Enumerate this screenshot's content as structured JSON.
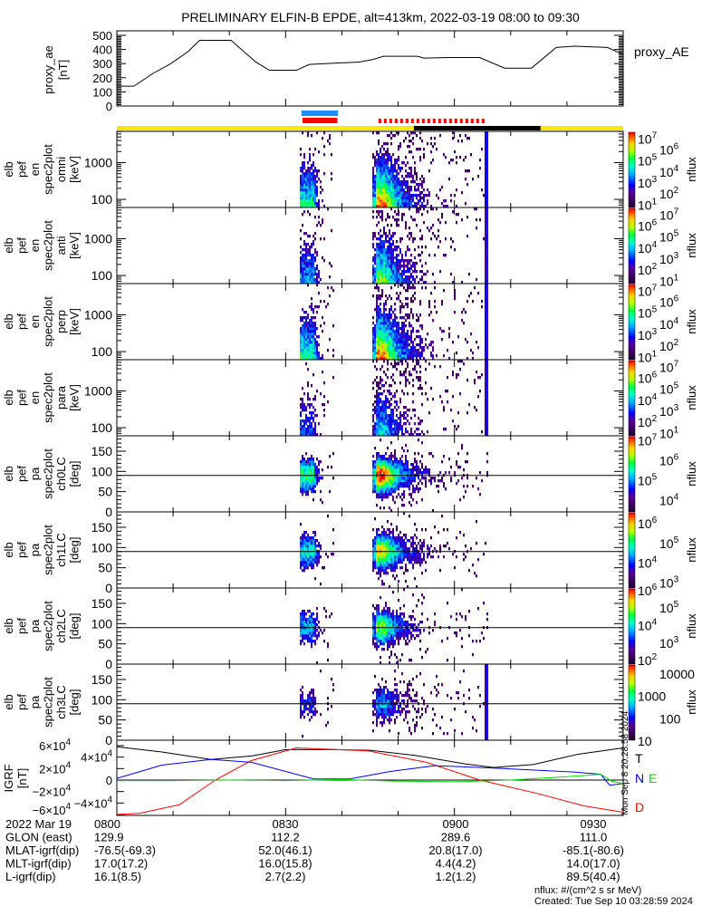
{
  "title": "PRELIMINARY ELFIN-B EPDE, alt=413km, 2022-03-19 08:00 to 09:30",
  "chart_data": [
    {
      "type": "line",
      "name": "proxy_ae",
      "ylabel": [
        "proxy_ae",
        "[nT]"
      ],
      "legend": "proxy_AE",
      "xunit": "minutes after 08:00",
      "xlim": [
        0,
        90
      ],
      "ylim": [
        0,
        500
      ],
      "yticks": [
        "0",
        "100",
        "200",
        "300",
        "400",
        "500"
      ],
      "ytick_values": [
        0,
        100,
        200,
        300,
        400,
        500
      ],
      "x": [
        0,
        3,
        6.4,
        9.6,
        12.7,
        14.7,
        20.3,
        24.7,
        27.1,
        31.9,
        34.2,
        39.8,
        43.0,
        45.4,
        47.4,
        53.4,
        54.6,
        58.9,
        64.5,
        68.9,
        73.7,
        78.1,
        81.3,
        87.2,
        90
      ],
      "values": [
        140,
        140,
        230,
        300,
        386,
        465,
        465,
        311,
        253,
        253,
        294,
        305,
        311,
        328,
        352,
        352,
        339,
        343,
        343,
        268,
        268,
        414,
        423,
        414,
        365
      ]
    },
    {
      "type": "interval_bars",
      "name": "zone_indicators",
      "xunit": "minutes after 08:00",
      "bars": [
        {
          "name": "blue-bar",
          "color": "#1e8cff",
          "start": 32.8,
          "end": 39.3,
          "style": "solid"
        },
        {
          "name": "red-bar",
          "color": "#ff0000",
          "start": 33.0,
          "end": 39.2,
          "style": "solid"
        },
        {
          "name": "red-dashed-bar",
          "color": "#ff0000",
          "start": 46.5,
          "end": 65.8,
          "style": "dashed"
        }
      ],
      "sun_bar": {
        "sunlit_color": "#ffe600",
        "shadow_color": "#000000",
        "shadow": [
          52.8,
          75.3
        ]
      }
    },
    {
      "type": "heatmap",
      "name": "spectrograms",
      "zlabel": "nflux",
      "active_intervals": [
        [
          32.3,
          38.6
        ],
        [
          45.3,
          65.8
        ]
      ],
      "panels": [
        {
          "ylabel": [
            "elb",
            "pef",
            "en",
            "spec2plot",
            "omni",
            "[keV]"
          ],
          "kind": "energy",
          "yticks": [
            "1000",
            "100"
          ],
          "ytick_values": [
            1000,
            100
          ],
          "ylog_range": [
            1.78,
            3.85
          ],
          "strength": 1.0,
          "colorbar": {
            "log_range": [
              0.7,
              7.6
            ],
            "labels": [
              [
                "10",
                "7"
              ],
              [
                "10",
                "6"
              ],
              [
                "10",
                "5"
              ],
              [
                "10",
                "4"
              ],
              [
                "10",
                "3"
              ],
              [
                "10",
                "2"
              ],
              [
                "10",
                "1"
              ]
            ],
            "label_exps": [
              7,
              6,
              5,
              4,
              3,
              2,
              1
            ]
          }
        },
        {
          "ylabel": [
            "elb",
            "pef",
            "en",
            "spec2plot",
            "anti",
            "[keV]"
          ],
          "kind": "energy",
          "yticks": [
            "1000",
            "100"
          ],
          "ytick_values": [
            1000,
            100
          ],
          "ylog_range": [
            1.78,
            3.85
          ],
          "strength": 0.75,
          "colorbar": {
            "log_range": [
              0.7,
              7.6
            ],
            "labels": [
              [
                "10",
                "7"
              ],
              [
                "10",
                "6"
              ],
              [
                "10",
                "5"
              ],
              [
                "10",
                "4"
              ],
              [
                "10",
                "3"
              ],
              [
                "10",
                "2"
              ],
              [
                "10",
                "1"
              ]
            ],
            "label_exps": [
              7,
              6,
              5,
              4,
              3,
              2,
              1
            ]
          }
        },
        {
          "ylabel": [
            "elb",
            "pef",
            "en",
            "spec2plot",
            "perp",
            "[keV]"
          ],
          "kind": "energy",
          "yticks": [
            "1000",
            "100"
          ],
          "ytick_values": [
            1000,
            100
          ],
          "ylog_range": [
            1.78,
            3.85
          ],
          "strength": 1.0,
          "colorbar": {
            "log_range": [
              0.7,
              7.6
            ],
            "labels": [
              [
                "10",
                "7"
              ],
              [
                "10",
                "6"
              ],
              [
                "10",
                "5"
              ],
              [
                "10",
                "4"
              ],
              [
                "10",
                "3"
              ],
              [
                "10",
                "2"
              ],
              [
                "10",
                "1"
              ]
            ],
            "label_exps": [
              7,
              6,
              5,
              4,
              3,
              2,
              1
            ]
          }
        },
        {
          "ylabel": [
            "elb",
            "pef",
            "en",
            "spec2plot",
            "para",
            "[keV]"
          ],
          "kind": "energy",
          "yticks": [
            "1000",
            "100"
          ],
          "ytick_values": [
            1000,
            100
          ],
          "ylog_range": [
            1.78,
            3.85
          ],
          "strength": 0.55,
          "colorbar": {
            "log_range": [
              0.7,
              7.6
            ],
            "labels": [
              [
                "10",
                "7"
              ],
              [
                "10",
                "6"
              ],
              [
                "10",
                "5"
              ],
              [
                "10",
                "4"
              ],
              [
                "10",
                "3"
              ],
              [
                "10",
                "2"
              ],
              [
                "10",
                "1"
              ]
            ],
            "label_exps": [
              7,
              6,
              5,
              4,
              3,
              2,
              1
            ]
          }
        },
        {
          "ylabel": [
            "elb",
            "pef",
            "pa",
            "spec2plot",
            "ch0LC",
            "[deg]"
          ],
          "kind": "pa",
          "yticks": [
            "150",
            "100",
            "50",
            "0"
          ],
          "ytick_values": [
            150,
            100,
            50,
            0
          ],
          "yrange": [
            0,
            188
          ],
          "strength": 1.0,
          "colorbar": {
            "log_range": [
              3.4,
              7.2
            ],
            "labels": [
              [
                "10",
                "7"
              ],
              [
                "10",
                "6"
              ],
              [
                "10",
                "5"
              ],
              [
                "10",
                "4"
              ]
            ],
            "label_exps": [
              7,
              6,
              5,
              4
            ]
          }
        },
        {
          "ylabel": [
            "elb",
            "pef",
            "pa",
            "spec2plot",
            "ch1LC",
            "[deg]"
          ],
          "kind": "pa",
          "yticks": [
            "150",
            "100",
            "50",
            "0"
          ],
          "ytick_values": [
            150,
            100,
            50,
            0
          ],
          "yrange": [
            0,
            188
          ],
          "strength": 0.85,
          "colorbar": {
            "log_range": [
              2.7,
              6.55
            ],
            "labels": [
              [
                "10",
                "6"
              ],
              [
                "10",
                "5"
              ],
              [
                "10",
                "4"
              ],
              [
                "10",
                "3"
              ]
            ],
            "label_exps": [
              6,
              5,
              4,
              3
            ]
          }
        },
        {
          "ylabel": [
            "elb",
            "pef",
            "pa",
            "spec2plot",
            "ch2LC",
            "[deg]"
          ],
          "kind": "pa",
          "yticks": [
            "150",
            "100",
            "50",
            "0"
          ],
          "ytick_values": [
            150,
            100,
            50,
            0
          ],
          "yrange": [
            0,
            188
          ],
          "strength": 0.7,
          "colorbar": {
            "log_range": [
              1.75,
              6.1
            ],
            "labels": [
              [
                "10",
                "6"
              ],
              [
                "10",
                "5"
              ],
              [
                "10",
                "4"
              ],
              [
                "10",
                "3"
              ],
              [
                "10",
                "2"
              ]
            ],
            "label_exps": [
              6,
              5,
              4,
              3,
              2
            ]
          }
        },
        {
          "ylabel": [
            "elb",
            "pef",
            "pa",
            "spec2plot",
            "ch3LC",
            "[deg]"
          ],
          "kind": "pa",
          "yticks": [
            "150",
            "100",
            "50",
            "0"
          ],
          "ytick_values": [
            150,
            100,
            50,
            0
          ],
          "yrange": [
            0,
            188
          ],
          "strength": 0.45,
          "colorbar": {
            "log_range": [
              1.0,
              4.4
            ],
            "labels": [
              [
                "10000",
                ""
              ],
              [
                "1000",
                ""
              ],
              [
                "100",
                ""
              ],
              [
                "10",
                ""
              ]
            ],
            "label_exps": [
              4,
              3,
              2,
              1
            ]
          }
        }
      ]
    },
    {
      "type": "line",
      "name": "igrf",
      "ylabel": [
        "IGRF",
        "[nT]"
      ],
      "xunit": "minutes after 08:00",
      "ylim": [
        -60000,
        60000
      ],
      "yticks": [
        [
          "6×10",
          "4"
        ],
        [
          "4×10",
          "4"
        ],
        [
          "2×10",
          "4"
        ],
        [
          "0",
          ""
        ],
        [
          "−2×10",
          "4"
        ],
        [
          "−4×10",
          "4"
        ],
        [
          "−6×10",
          "4"
        ]
      ],
      "ytick_values": [
        60000,
        40000,
        20000,
        0,
        -20000,
        -40000,
        -60000
      ],
      "series": [
        {
          "name": "T",
          "color": "#000000",
          "x": [
            0,
            8,
            16.7,
            24,
            30,
            38,
            45,
            53,
            62,
            67,
            74,
            82,
            90
          ],
          "values": [
            58000,
            49000,
            36000,
            42000,
            53000,
            53000,
            52000,
            43000,
            28000,
            22000,
            27000,
            45000,
            56000
          ]
        },
        {
          "name": "D",
          "color": "#ff0000",
          "x": [
            0,
            4,
            11.1,
            17.5,
            23.9,
            31.9,
            44.6,
            55,
            64.5,
            75,
            83,
            90
          ],
          "values": [
            -60000,
            -58000,
            -43000,
            0,
            34000,
            56000,
            51000,
            31000,
            0,
            -24000,
            -45000,
            -56000
          ]
        },
        {
          "name": "N",
          "color": "#0000ff",
          "x": [
            0,
            8,
            16.7,
            23.9,
            35,
            41.4,
            48.6,
            56.5,
            66.9,
            81.2,
            86,
            87.6,
            90
          ],
          "values": [
            3000,
            26000,
            36000,
            31000,
            2000,
            2000,
            15000,
            25000,
            21000,
            14000,
            10000,
            -9000,
            -6000
          ]
        },
        {
          "name": "E",
          "color": "#00e000",
          "x": [
            0,
            10,
            20,
            30,
            40,
            50,
            60,
            70,
            80,
            86,
            88,
            90
          ],
          "values": [
            -1000,
            -1000,
            0,
            -1000,
            1000,
            -2000,
            -3000,
            0,
            6000,
            10000,
            -2000,
            -6000
          ]
        }
      ],
      "legend": [
        "T",
        "N",
        "E",
        "D"
      ]
    }
  ],
  "orbit_table": {
    "rows": [
      {
        "label": "2022 Mar 19",
        "values": [
          "0800",
          "0830",
          "0900",
          "0930"
        ]
      },
      {
        "label": "GLON (east)",
        "values": [
          "129.9",
          "112.2",
          "289.6",
          "111.0"
        ]
      },
      {
        "label": "MLAT-igrf(dip)",
        "values": [
          "-76.5(-69.3)",
          "52.0(46.1)",
          "20.8(17.0)",
          "-85.1(-80.6)"
        ]
      },
      {
        "label": "MLT-igrf(dip)",
        "values": [
          "17.0(17.2)",
          "16.0(15.8)",
          "4.4(4.2)",
          "14.0(17.0)"
        ]
      },
      {
        "label": "L-igrf(dip)",
        "values": [
          "16.1(8.5)",
          "2.7(2.2)",
          "1.2(1.2)",
          "89.5(40.4)"
        ]
      }
    ]
  },
  "footer": {
    "units": "nflux: #/(cm^2 s sr MeV)",
    "created": "Created: Tue Sep 10 03:28:59 2024"
  },
  "vertical_stamp": "Mon Sep  8 20:28:58 2024"
}
